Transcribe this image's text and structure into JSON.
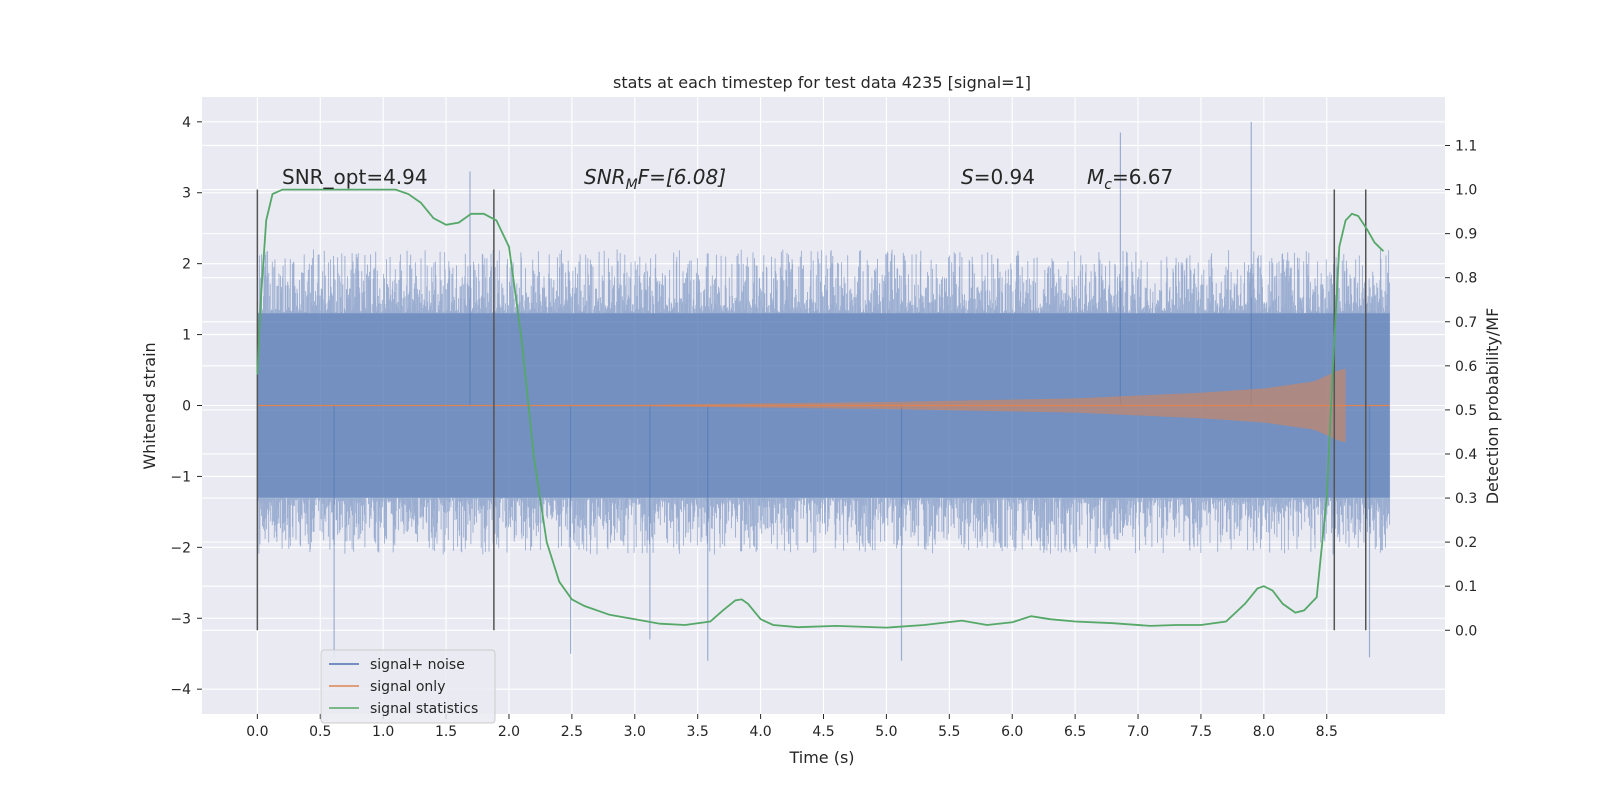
{
  "chart_data": {
    "type": "line",
    "title": "stats at each timestep for test data 4235 [signal=1]",
    "xlabel": "Time (s)",
    "ylabel": "Whitened strain",
    "ylabel_right": "Detection probability/MF",
    "xlim": [
      -0.44,
      9.44
    ],
    "ylim": [
      -4.35,
      4.35
    ],
    "ylim_right": [
      -0.19,
      1.21
    ],
    "x_ticks": [
      "0.0",
      "0.5",
      "1.0",
      "1.5",
      "2.0",
      "2.5",
      "3.0",
      "3.5",
      "4.0",
      "4.5",
      "5.0",
      "5.5",
      "6.0",
      "6.5",
      "7.0",
      "7.5",
      "8.0",
      "8.5"
    ],
    "y_ticks": [
      "4",
      "3",
      "2",
      "1",
      "0",
      "−1",
      "−2",
      "−3",
      "−4"
    ],
    "y_right_ticks": [
      "1.1",
      "1.0",
      "0.9",
      "0.8",
      "0.7",
      "0.6",
      "0.5",
      "0.4",
      "0.3",
      "0.2",
      "0.1",
      "0.0"
    ],
    "grid": true,
    "legend": "lower-left",
    "colors": {
      "background": "#eaeaf2",
      "grid": "#ffffff",
      "noise": "#4c72b0",
      "signal": "#dd8452",
      "statistics": "#55a868",
      "vline": "#555555"
    },
    "annotations": {
      "snr_opt": "SNR_opt=4.94",
      "snr_mf_prefix": "SNR",
      "snr_mf_sub": "M",
      "snr_mf_rest": "F=[6.08]",
      "s_letter": "S",
      "s_value": "=0.94",
      "mc_letter": "M",
      "mc_sub": "c",
      "mc_value": "=6.67"
    },
    "vertical_lines_x": [
      0.0,
      1.88,
      8.56,
      8.81
    ],
    "series": [
      {
        "name": "signal+ noise",
        "kind": "noise",
        "x_range": [
          0.0,
          9.0
        ],
        "band": [
          -1.3,
          1.3
        ],
        "typical_peak": [
          -2.1,
          2.2
        ],
        "extreme_values": [
          [
            0.61,
            -3.55
          ],
          [
            1.69,
            3.3
          ],
          [
            2.49,
            -3.5
          ],
          [
            3.12,
            -3.3
          ],
          [
            3.58,
            -3.6
          ],
          [
            6.86,
            3.85
          ],
          [
            7.9,
            4.0
          ],
          [
            8.84,
            -3.55
          ],
          [
            5.12,
            -3.6
          ]
        ]
      },
      {
        "name": "signal only",
        "kind": "chirp",
        "x_range": [
          0.0,
          8.65
        ],
        "envelope": [
          [
            0.0,
            0.0
          ],
          [
            3.0,
            0.01
          ],
          [
            5.0,
            0.05
          ],
          [
            6.5,
            0.1
          ],
          [
            7.5,
            0.18
          ],
          [
            8.0,
            0.24
          ],
          [
            8.4,
            0.34
          ],
          [
            8.6,
            0.5
          ],
          [
            8.65,
            0.52
          ]
        ]
      },
      {
        "name": "signal statistics",
        "kind": "line",
        "axis": "right",
        "x": [
          0.0,
          0.03,
          0.07,
          0.12,
          0.2,
          0.3,
          0.45,
          0.6,
          0.8,
          1.0,
          1.1,
          1.2,
          1.3,
          1.4,
          1.5,
          1.6,
          1.7,
          1.8,
          1.9,
          2.0,
          2.1,
          2.2,
          2.3,
          2.4,
          2.5,
          2.6,
          2.8,
          3.0,
          3.2,
          3.4,
          3.6,
          3.7,
          3.8,
          3.85,
          3.9,
          4.0,
          4.1,
          4.3,
          4.6,
          5.0,
          5.3,
          5.6,
          5.8,
          6.0,
          6.15,
          6.3,
          6.5,
          6.8,
          7.1,
          7.3,
          7.5,
          7.7,
          7.85,
          7.95,
          8.0,
          8.07,
          8.15,
          8.25,
          8.32,
          8.42,
          8.5,
          8.55,
          8.6,
          8.65,
          8.7,
          8.75,
          8.82,
          8.88,
          8.95
        ],
        "y": [
          0.58,
          0.76,
          0.93,
          0.99,
          1.0,
          1.0,
          1.0,
          1.0,
          1.0,
          1.0,
          1.0,
          0.99,
          0.97,
          0.935,
          0.92,
          0.925,
          0.945,
          0.945,
          0.93,
          0.87,
          0.66,
          0.39,
          0.2,
          0.11,
          0.07,
          0.055,
          0.035,
          0.025,
          0.015,
          0.012,
          0.02,
          0.045,
          0.068,
          0.07,
          0.06,
          0.025,
          0.012,
          0.007,
          0.01,
          0.006,
          0.012,
          0.022,
          0.012,
          0.018,
          0.032,
          0.025,
          0.02,
          0.016,
          0.01,
          0.012,
          0.012,
          0.02,
          0.06,
          0.095,
          0.1,
          0.09,
          0.06,
          0.04,
          0.045,
          0.075,
          0.3,
          0.6,
          0.87,
          0.93,
          0.945,
          0.94,
          0.91,
          0.88,
          0.86
        ]
      }
    ]
  }
}
